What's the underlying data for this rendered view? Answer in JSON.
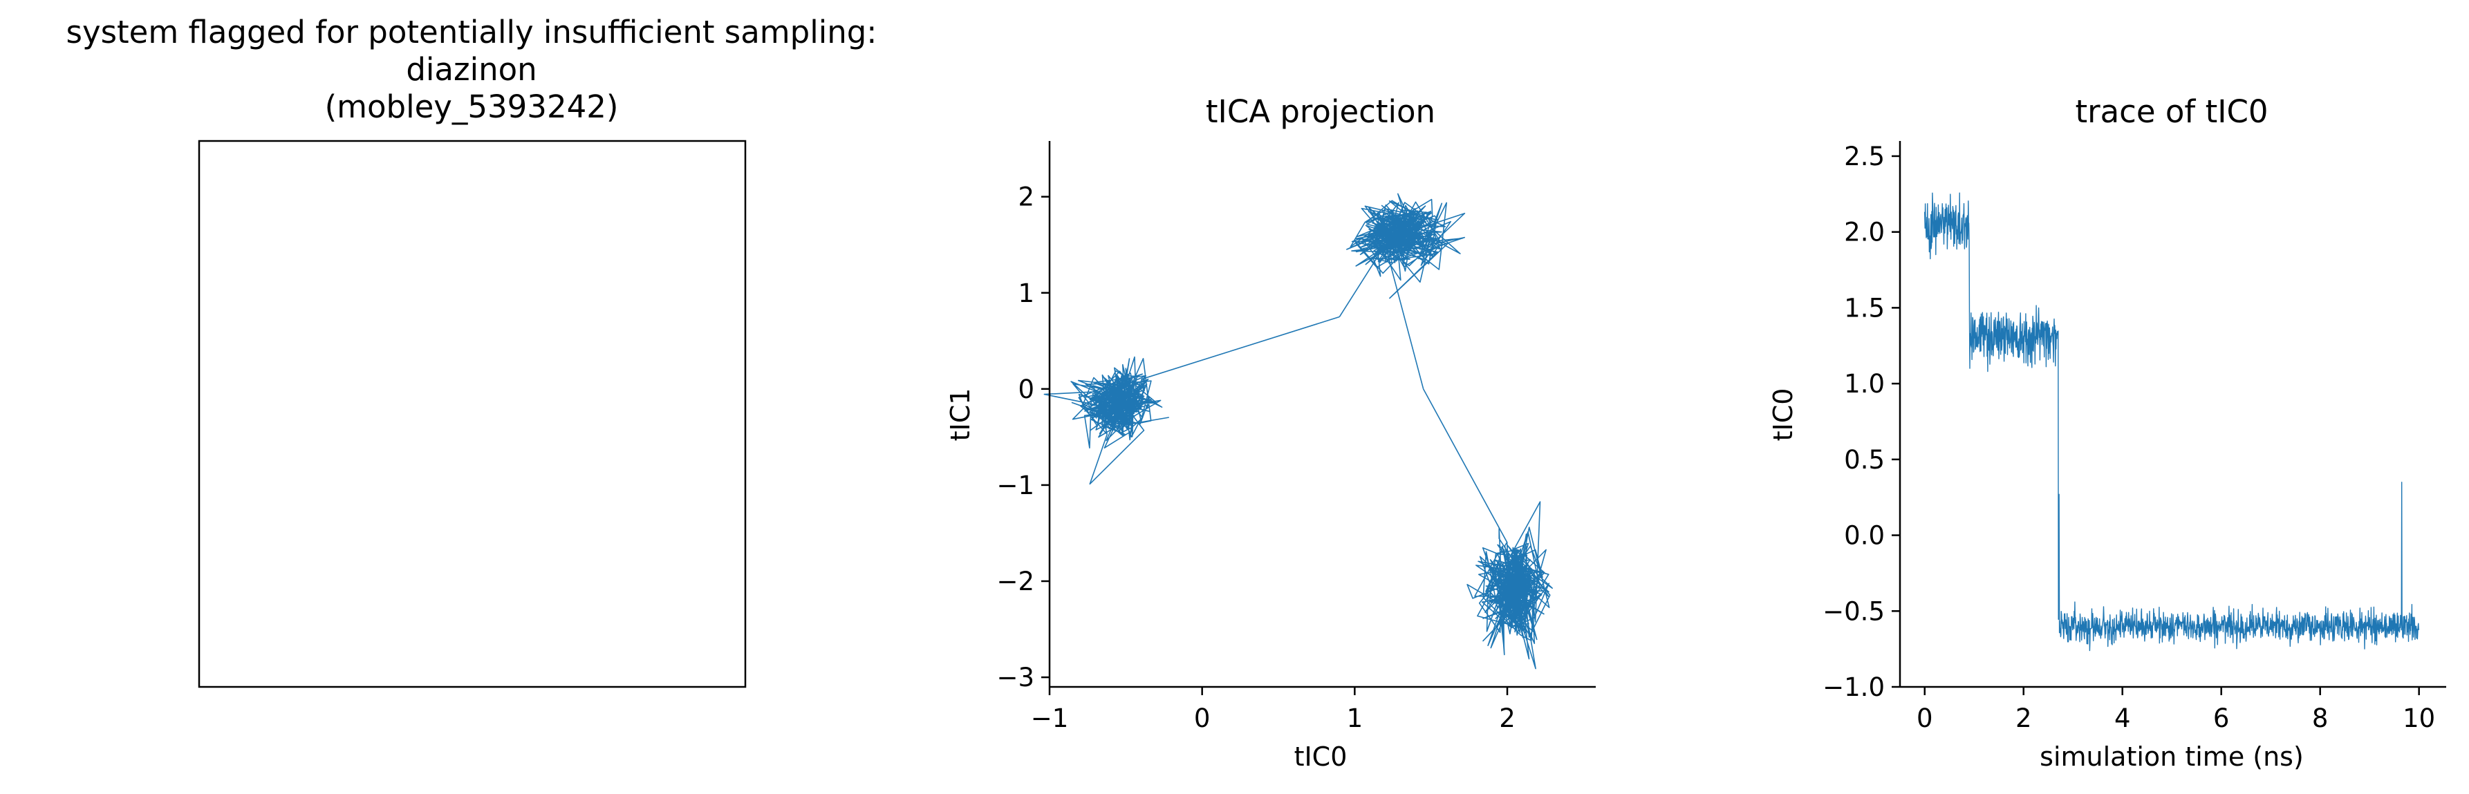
{
  "figure": {
    "title_lines": [
      "system flagged for potentially insufficient sampling:",
      "diazinon",
      "(mobley_5393242)"
    ]
  },
  "colors": {
    "series": "#1f77b4",
    "axis": "#000000"
  },
  "chart_data": [
    {
      "type": "image",
      "panel": "molecule",
      "title": "",
      "note_visible_content": "empty box"
    },
    {
      "type": "line",
      "panel": "tica-projection",
      "title": "tICA projection",
      "xlabel": "tIC0",
      "ylabel": "tIC1",
      "xlim": [
        -1.0,
        2.58
      ],
      "ylim": [
        -3.1,
        2.58
      ],
      "xticks": [
        -1,
        0,
        1,
        2
      ],
      "xtick_labels": [
        "−1",
        "0",
        "1",
        "2"
      ],
      "yticks": [
        -3,
        -2,
        -1,
        0,
        1,
        2
      ],
      "ytick_labels": [
        "−3",
        "−2",
        "−1",
        "0",
        "1",
        "2"
      ],
      "spines": "left-bottom",
      "grid": false,
      "clusters": [
        {
          "cx": -0.55,
          "cy": -0.15,
          "sx": 0.12,
          "sy": 0.2,
          "n": 320
        },
        {
          "cx": 1.3,
          "cy": 1.6,
          "sx": 0.14,
          "sy": 0.17,
          "n": 320
        },
        {
          "cx": 2.05,
          "cy": -2.1,
          "sx": 0.1,
          "sy": 0.27,
          "n": 360
        }
      ],
      "transitions": [
        {
          "from": [
            -0.4,
            0.1
          ],
          "to": [
            0.9,
            0.75
          ]
        },
        {
          "from": [
            0.9,
            0.75
          ],
          "to": [
            1.2,
            1.5
          ]
        },
        {
          "from": [
            1.2,
            1.5
          ],
          "to": [
            1.45,
            0.0
          ]
        },
        {
          "from": [
            1.45,
            0.0
          ],
          "to": [
            2.0,
            -1.6
          ]
        }
      ]
    },
    {
      "type": "line",
      "panel": "trace-tic0",
      "title": "trace of tIC0",
      "xlabel": "simulation time (ns)",
      "ylabel": "tIC0",
      "xlim": [
        -0.5,
        10.55
      ],
      "ylim": [
        -1.0,
        2.6
      ],
      "xticks": [
        0,
        2,
        4,
        6,
        8,
        10
      ],
      "xtick_labels": [
        "0",
        "2",
        "4",
        "6",
        "8",
        "10"
      ],
      "yticks": [
        -1.0,
        -0.5,
        0.0,
        0.5,
        1.0,
        1.5,
        2.0,
        2.5
      ],
      "ytick_labels": [
        "−1.0",
        "−0.5",
        "0.0",
        "0.5",
        "1.0",
        "1.5",
        "2.0",
        "2.5"
      ],
      "spines": "left-bottom",
      "grid": false,
      "segments": [
        {
          "t_start": 0.0,
          "t_end": 0.9,
          "mean": 2.05,
          "noise": 0.1
        },
        {
          "t_start": 0.9,
          "t_end": 2.7,
          "mean": 1.32,
          "noise": 0.09
        },
        {
          "t_start": 2.7,
          "t_end": 10.0,
          "mean": -0.6,
          "noise": 0.05
        }
      ],
      "spikes": [
        {
          "t": 2.72,
          "value": 0.27
        },
        {
          "t": 9.65,
          "value": 0.35
        }
      ]
    }
  ]
}
